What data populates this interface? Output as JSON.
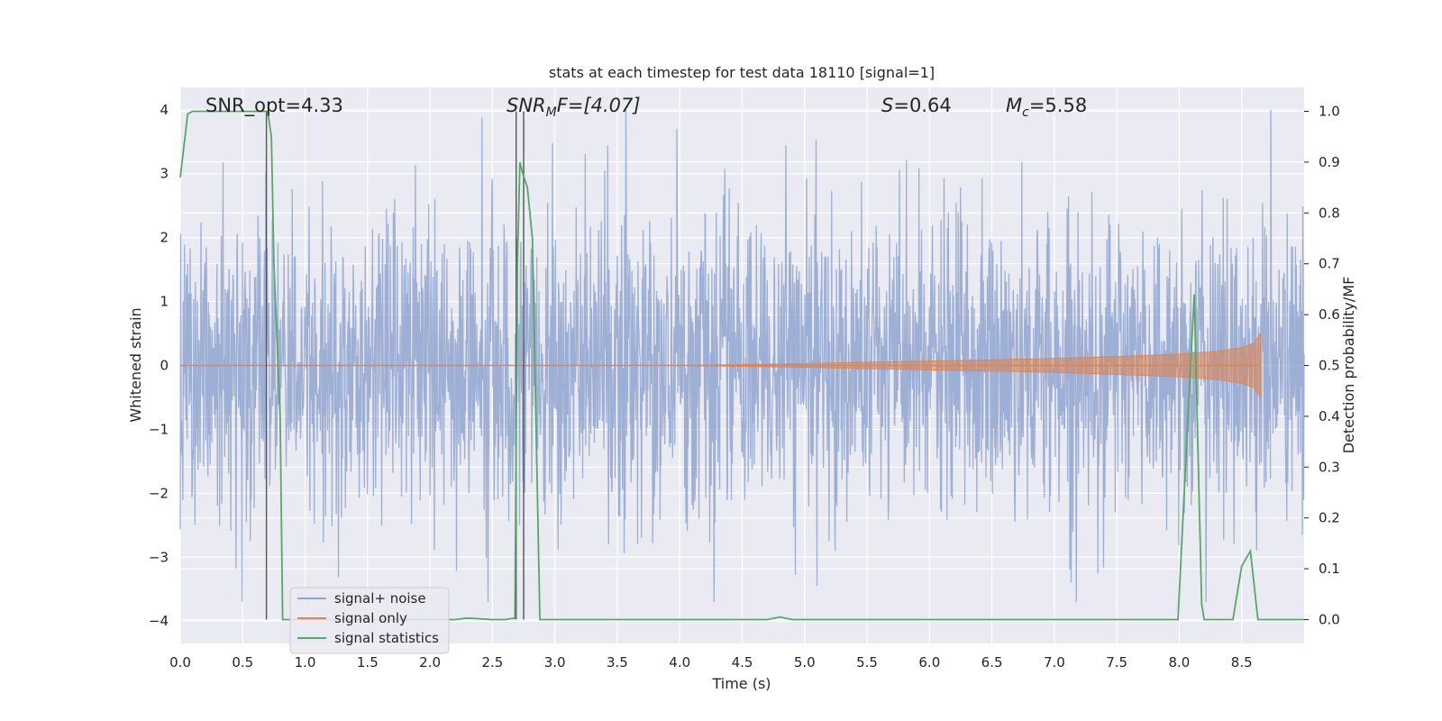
{
  "chart_data": {
    "type": "line",
    "title": "stats at each timestep for test data 18110 [signal=1]",
    "xlabel": "Time (s)",
    "ylabel_left": "Whitened strain",
    "ylabel_right": "Detection probability/MF",
    "xlim": [
      0.0,
      9.0
    ],
    "ylim_left": [
      -4.35,
      4.35
    ],
    "ylim_right": [
      -0.047,
      1.047
    ],
    "x_ticks": [
      "0.0",
      "0.5",
      "1.0",
      "1.5",
      "2.0",
      "2.5",
      "3.0",
      "3.5",
      "4.0",
      "4.5",
      "5.0",
      "5.5",
      "6.0",
      "6.5",
      "7.0",
      "7.5",
      "8.0",
      "8.5"
    ],
    "y_ticks_left": [
      "4",
      "3",
      "2",
      "1",
      "0",
      "−1",
      "−2",
      "−3",
      "−4"
    ],
    "y_ticks_right": [
      "1.0",
      "0.9",
      "0.8",
      "0.7",
      "0.6",
      "0.5",
      "0.4",
      "0.3",
      "0.2",
      "0.1",
      "0.0"
    ],
    "grid": true,
    "legend_position": "lower-left",
    "annotations": {
      "snr_opt": "SNR_opt=4.33",
      "snr_mf_main": "SNR",
      "snr_mf_sub": "M",
      "snr_mf_rest": "F=[4.07]",
      "s_main": "S",
      "s_rest": "=0.64",
      "mc_main": "M",
      "mc_sub": "c",
      "mc_rest": "=5.58"
    },
    "vertical_markers": [
      0.69,
      2.69,
      2.75
    ],
    "series": [
      {
        "name": "signal+ noise",
        "color": "#8fa5cf",
        "axis": "left",
        "description_values": {
          "duration": 9.0,
          "approx_range": [
            -3.7,
            4.0
          ]
        }
      },
      {
        "name": "signal only",
        "color": "#dd8452",
        "axis": "left",
        "envelope": {
          "x": [
            0.0,
            4.0,
            5.0,
            6.0,
            7.0,
            7.5,
            8.0,
            8.3,
            8.5,
            8.6,
            8.65
          ],
          "amp": [
            0.0,
            0.0,
            0.03,
            0.07,
            0.11,
            0.14,
            0.18,
            0.22,
            0.28,
            0.35,
            0.5
          ]
        }
      },
      {
        "name": "signal statistics",
        "color": "#55a868",
        "axis": "right",
        "x": [
          0.0,
          0.06,
          0.1,
          0.15,
          0.3,
          0.5,
          0.62,
          0.7,
          0.73,
          0.75,
          0.8,
          0.82,
          0.9,
          1.2,
          1.5,
          1.8,
          2.0,
          2.1,
          2.2,
          2.3,
          2.5,
          2.6,
          2.68,
          2.7,
          2.72,
          2.74,
          2.78,
          2.82,
          2.88,
          3.0,
          4.0,
          4.7,
          4.8,
          4.9,
          5.5,
          6.0,
          7.0,
          7.9,
          7.99,
          8.06,
          8.12,
          8.18,
          8.2,
          8.3,
          8.43,
          8.5,
          8.57,
          8.63,
          8.7,
          8.8,
          9.0
        ],
        "y": [
          0.87,
          0.995,
          1.0,
          1.0,
          1.0,
          1.0,
          1.0,
          1.0,
          0.95,
          0.7,
          0.4,
          0.0,
          0.0,
          0.0,
          0.0,
          0.0,
          0.0,
          0.0,
          0.0,
          0.003,
          0.0,
          0.0,
          0.003,
          0.7,
          0.9,
          0.88,
          0.85,
          0.75,
          0.0,
          0.0,
          0.0,
          0.0,
          0.005,
          0.0,
          0.0,
          0.0,
          0.0,
          0.0,
          0.0,
          0.35,
          0.64,
          0.03,
          0.0,
          0.0,
          0.0,
          0.105,
          0.135,
          0.0,
          0.0,
          0.0,
          0.0
        ]
      }
    ]
  }
}
